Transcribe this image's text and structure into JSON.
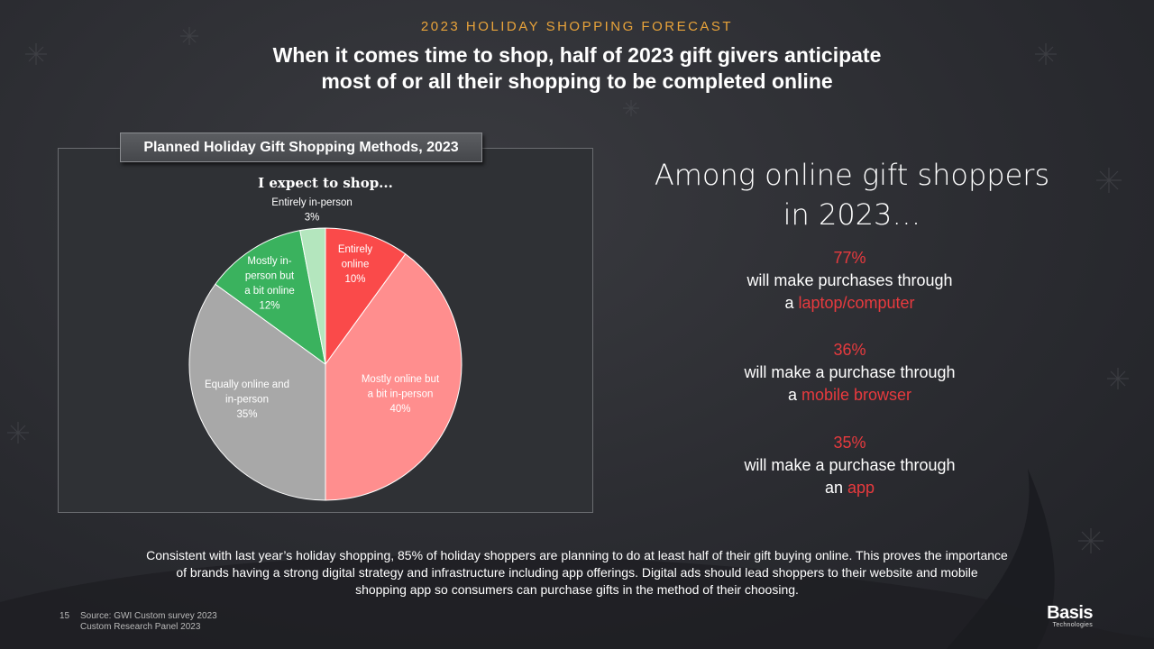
{
  "header": {
    "kicker": "2023 HOLIDAY SHOPPING FORECAST",
    "headline_line1": "When it comes time to shop, half of 2023 gift givers anticipate",
    "headline_line2": "most of or all their shopping to be completed online"
  },
  "chart_panel": {
    "title": "Planned Holiday Gift Shopping Methods, 2023"
  },
  "chart_data": {
    "type": "pie",
    "title": "I expect to shop...",
    "slices": [
      {
        "label_lines": [
          "Entirely",
          "online"
        ],
        "value": 10,
        "value_label": "10%",
        "color": "#fa4a4a"
      },
      {
        "label_lines": [
          "Mostly online but",
          "a bit in-person"
        ],
        "value": 40,
        "value_label": "40%",
        "color": "#ff8e8e"
      },
      {
        "label_lines": [
          "Equally online and",
          "in-person"
        ],
        "value": 35,
        "value_label": "35%",
        "color": "#a8a8a8"
      },
      {
        "label_lines": [
          "Mostly in-",
          "person but",
          "a bit online"
        ],
        "value": 12,
        "value_label": "12%",
        "color": "#3ab25e"
      },
      {
        "label_lines": [
          "Entirely in-person"
        ],
        "value": 3,
        "value_label": "3%",
        "color": "#b4e6be"
      }
    ]
  },
  "callout": {
    "heading_line1": "Among online gift shoppers",
    "heading_line2": "in 2023…",
    "stats": [
      {
        "pct": "77%",
        "line1": "will make purchases through",
        "prefix": "a ",
        "highlight": "laptop/computer"
      },
      {
        "pct": "36%",
        "line1": "will make a purchase through",
        "prefix": "a ",
        "highlight": "mobile browser"
      },
      {
        "pct": "35%",
        "line1": "will make a purchase through",
        "prefix": "an ",
        "highlight": "app"
      }
    ]
  },
  "footer": {
    "body_line1": "Consistent with last year’s holiday shopping, 85% of holiday shoppers are planning to do at least half of their gift buying online. This proves the importance",
    "body_line2": "of brands having a strong digital strategy and infrastructure including app offerings. Digital ads should lead shoppers to their website and mobile",
    "body_line3": "shopping app so consumers can purchase gifts in the method of their choosing.",
    "page_number": "15",
    "source_line1": "Source: GWI Custom survey 2023",
    "source_line2": "Custom Research Panel 2023"
  },
  "logo": {
    "brand": "Basis",
    "sub": "Technologies"
  }
}
